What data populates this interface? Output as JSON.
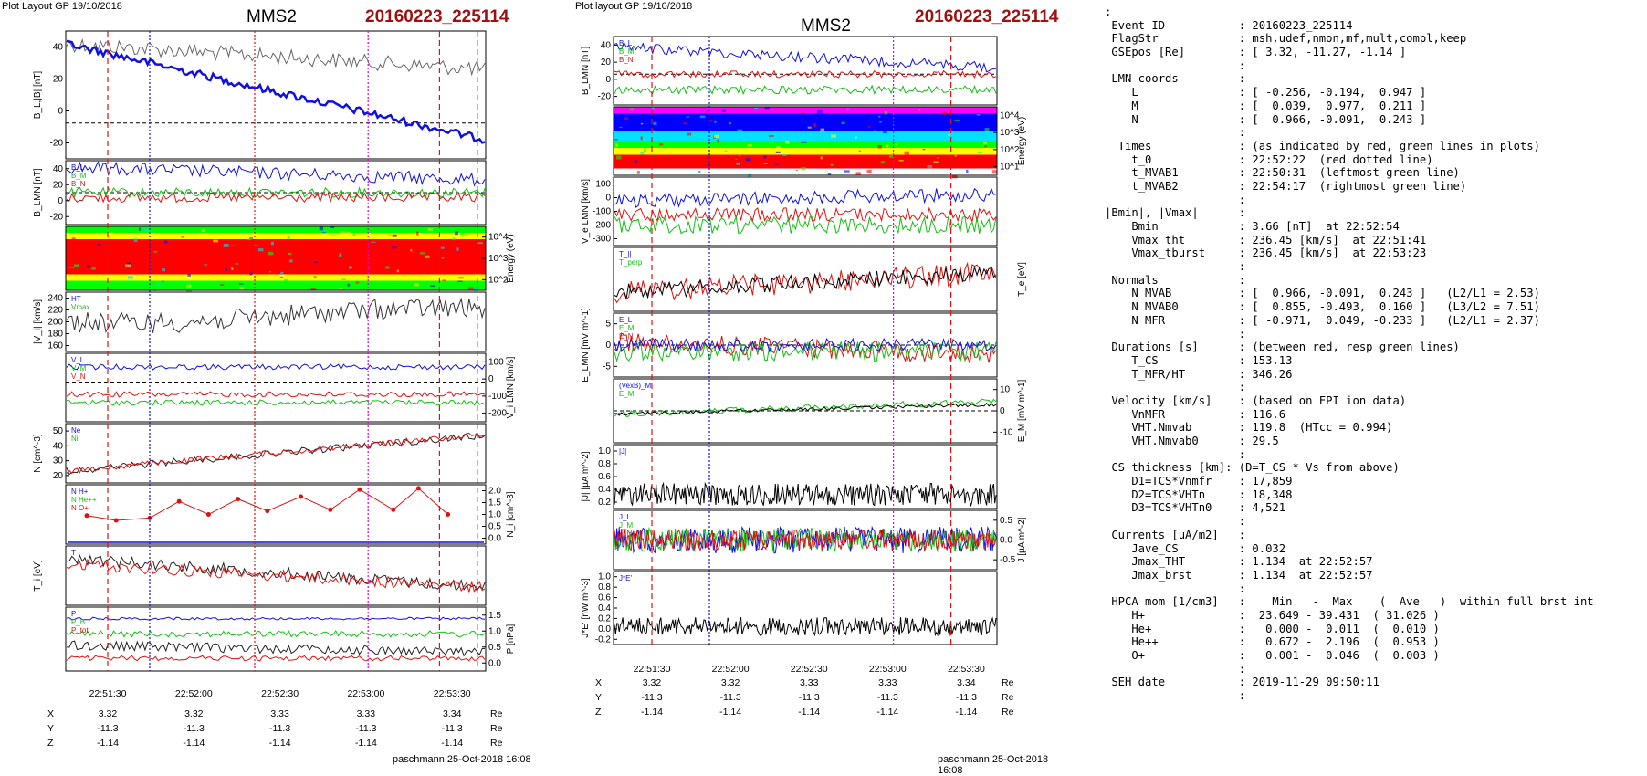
{
  "left": {
    "header": "Plot Layout GP 19/10/2018",
    "title": "MMS2",
    "event": "20160223_225114",
    "footer": "paschmann 25-Oct-2018 16:08",
    "time_ticks": [
      "22:51:30",
      "22:52:00",
      "22:52:30",
      "22:53:00",
      "22:53:30"
    ],
    "pos_rows": [
      {
        "label": "X",
        "values": [
          "3.32",
          "3.32",
          "3.33",
          "3.33",
          "3.34"
        ],
        "unit": "Re"
      },
      {
        "label": "Y",
        "values": [
          "-11.3",
          "-11.3",
          "-11.3",
          "-11.3",
          "-11.3"
        ],
        "unit": "Re"
      },
      {
        "label": "Z",
        "values": [
          "-1.14",
          "-1.14",
          "-1.14",
          "-1.14",
          "-1.14"
        ],
        "unit": "Re"
      }
    ],
    "panels": [
      {
        "ylabel": "B_L,|B| [nT]",
        "ticks": [
          "40",
          "20",
          "0",
          "-20"
        ],
        "side": "left"
      },
      {
        "ylabel": "B_LMN [nT]",
        "ticks": [
          "40",
          "20",
          "0",
          "-20"
        ],
        "side": "left",
        "legend": [
          "B_L",
          "B_M",
          "B_N"
        ]
      },
      {
        "ylabel": "Energy (eV)",
        "ticks": [
          "10^4",
          "10^3",
          "10^2"
        ],
        "side": "right"
      },
      {
        "ylabel": "|V_i| [km/s]",
        "ticks": [
          "240",
          "220",
          "200",
          "180",
          "160"
        ],
        "side": "left",
        "legend": [
          "HT",
          "Vmax"
        ]
      },
      {
        "ylabel": "V_i LMN [km/s]",
        "ticks": [
          "100",
          "0",
          "-100",
          "-200"
        ],
        "side": "right",
        "legend": [
          "V_L",
          "V_M",
          "V_N"
        ]
      },
      {
        "ylabel": "N [cm^-3]",
        "ticks": [
          "50",
          "40",
          "30",
          "20"
        ],
        "side": "left",
        "legend": [
          "Ne",
          "Ni"
        ]
      },
      {
        "ylabel": "N_i [cm^-3]",
        "ticks": [
          "2.0",
          "1.5",
          "1.0",
          "0.5",
          "0.0"
        ],
        "side": "right",
        "legend": [
          "N H+",
          "N He++",
          "N O+"
        ]
      },
      {
        "ylabel": "T_i [eV]",
        "ticks": [],
        "side": "left",
        "legend": [
          "T"
        ]
      },
      {
        "ylabel": "P [nPa]",
        "ticks": [
          "1.5",
          "1.0",
          "0.5",
          "0.0"
        ],
        "side": "right",
        "legend": [
          "P",
          "P_B",
          "P_tot"
        ]
      }
    ]
  },
  "mid": {
    "header": "Plot layout GP 19/10/2018",
    "title": "MMS2",
    "event": "20160223_225114",
    "footer": "paschmann 25-Oct-2018 16:08",
    "time_ticks": [
      "22:51:30",
      "22:52:00",
      "22:52:30",
      "22:53:00",
      "22:53:30"
    ],
    "pos_rows": [
      {
        "label": "X",
        "values": [
          "3.32",
          "3.32",
          "3.33",
          "3.33",
          "3.34"
        ],
        "unit": "Re"
      },
      {
        "label": "Y",
        "values": [
          "-11.3",
          "-11.3",
          "-11.3",
          "-11.3",
          "-11.3"
        ],
        "unit": "Re"
      },
      {
        "label": "Z",
        "values": [
          "-1.14",
          "-1.14",
          "-1.14",
          "-1.14",
          "-1.14"
        ],
        "unit": "Re"
      }
    ],
    "panels": [
      {
        "ylabel": "B_LMN [nT]",
        "ticks": [
          "40",
          "20",
          "0",
          "-20"
        ],
        "side": "left",
        "legend": [
          "B_L",
          "B_M",
          "B_N"
        ]
      },
      {
        "ylabel": "Energy (eV)",
        "ticks": [
          "10^4",
          "10^3",
          "10^2",
          "10^1"
        ],
        "side": "right"
      },
      {
        "ylabel": "V_e LMN [km/s]",
        "ticks": [
          "100",
          "0",
          "-100",
          "-200",
          "-300"
        ],
        "side": "left"
      },
      {
        "ylabel": "T_e [eV]",
        "ticks": [],
        "side": "right",
        "legend": [
          "T_||",
          "T_perp"
        ]
      },
      {
        "ylabel": "E_LMN [mV m^-1]",
        "ticks": [
          "5",
          "0",
          "-5"
        ],
        "side": "left",
        "legend": [
          "E_L",
          "E_M",
          "E_N"
        ]
      },
      {
        "ylabel": "E_M [mV m^-1]",
        "ticks": [
          "10",
          "0",
          "-10"
        ],
        "side": "right",
        "legend": [
          "(VexB)_M",
          "E_M"
        ]
      },
      {
        "ylabel": "|J| [µA m^-2]",
        "ticks": [
          "1.0",
          "0.8",
          "0.6",
          "0.4",
          "0.2"
        ],
        "side": "left",
        "legend": [
          "|J|"
        ]
      },
      {
        "ylabel": "J [µA m^-2]",
        "ticks": [
          "0.5",
          "0.0",
          "-0.5"
        ],
        "side": "right",
        "legend": [
          "J_L",
          "J_M",
          "J_N"
        ]
      },
      {
        "ylabel": "J*E' [nW m^-3]",
        "ticks": [
          "1.0",
          "0.8",
          "0.6",
          "0.4",
          "0.2",
          "0.0",
          "-0.2"
        ],
        "side": "left",
        "legend": [
          "J*E'"
        ]
      }
    ]
  },
  "summary_lines": [
    ":",
    " Event ID           : 20160223_225114",
    " FlagStr            : msh,udef,nmon,mf,mult,compl,keep",
    " GSEpos [Re]        : [ 3.32, -11.27, -1.14 ]",
    "                    :",
    " LMN coords         :",
    "    L               : [ -0.256, -0.194,  0.947 ]",
    "    M               : [  0.039,  0.977,  0.211 ]",
    "    N               : [  0.966, -0.091,  0.243 ]",
    "                    :",
    "  Times             : (as indicated by red, green lines in plots)",
    "    t_0             : 22:52:22  (red dotted line)",
    "    t_MVAB1         : 22:50:31  (leftmost green line)",
    "    t_MVAB2         : 22:54:17  (rightmost green line)",
    "                    :",
    "|Bmin|, |Vmax|      :",
    "    Bmin            : 3.66 [nT]  at 22:52:54",
    "    Vmax_tht        : 236.45 [km/s]  at 22:51:41",
    "    Vmax_tburst     : 236.45 [km/s]  at 22:53:23",
    "                    :",
    " Normals            :",
    "    N MVAB          : [  0.966, -0.091,  0.243 ]   (L2/L1 = 2.53)",
    "    N MVAB0         : [  0.855, -0.493,  0.160 ]   (L3/L2 = 7.51)",
    "    N MFR           : [ -0.971,  0.049, -0.233 ]   (L2/L1 = 2.37)",
    "                    :",
    " Durations [s]      : (between red, resp green lines)",
    "    T_CS            : 153.13",
    "    T_MFR/HT        : 346.26",
    "                    :",
    " Velocity [km/s]    : (based on FPI ion data)",
    "    VnMFR           : 116.6",
    "    VHT.Nmvab       : 119.8  (HTcc = 0.994)",
    "    VHT.Nmvab0      : 29.5",
    "                    :",
    " CS thickness [km]: (D=T_CS * Vs from above)",
    "    D1=TCS*Vnmfr    : 17,859",
    "    D2=TCS*VHTn     : 18,348",
    "    D3=TCS*VHTn0    : 4,521",
    "                    :",
    " Currents [uA/m2]   :",
    "    Jave_CS         : 0.032",
    "    Jmax_THT        : 1.134  at 22:52:57",
    "    Jmax_brst       : 1.134  at 22:52:57",
    "                    :",
    " HPCA mom [1/cm3]   :    Min   -  Max    (  Ave   )  within full brst int",
    "    H+              :  23.649 - 39.431  ( 31.026 )",
    "    He+             :   0.000 -  0.011  (  0.010 )",
    "    He++            :   0.672 -  2.196  (  0.953 )",
    "    O+              :   0.001 -  0.046  (  0.003 )",
    "                    :",
    " SEH date           : 2019-11-29 09:50:11",
    "                    :"
  ],
  "colors": {
    "red": "#e01010",
    "blue": "#1010e0",
    "green": "#10c010",
    "black": "#000000",
    "magenta": "#e000e0",
    "event": "#a01010"
  },
  "chart_data": [
    {
      "type": "line",
      "title": "MMS2",
      "subtitle": "20160223_225114",
      "x": [
        "22:51:30",
        "22:52:00",
        "22:52:30",
        "22:53:00",
        "22:53:30"
      ],
      "series": [
        {
          "name": "B_L",
          "values": [
            35,
            20,
            5,
            -10,
            -20
          ]
        }
      ],
      "ylabel": "B_L,|B| [nT]"
    },
    {
      "type": "line",
      "title": "MMS2",
      "subtitle": "20160223_225114",
      "x": [
        "22:51:30",
        "22:52:00",
        "22:52:30",
        "22:53:00",
        "22:53:30"
      ],
      "series": [
        {
          "name": "B_L",
          "values": [
            35,
            25,
            20,
            10,
            -5
          ]
        },
        {
          "name": "B_M",
          "values": [
            0,
            -2,
            -4,
            -6,
            -8
          ]
        },
        {
          "name": "B_N",
          "values": [
            -10,
            -12,
            -14,
            -15,
            -16
          ]
        }
      ],
      "ylabel": "B_LMN [nT]"
    },
    {
      "type": "scatter",
      "x": [
        "22:51:30",
        "22:52:00",
        "22:52:30",
        "22:53:00",
        "22:53:30"
      ],
      "series": [
        {
          "name": "N He++",
          "values": [
            0.75,
            1.45,
            1.55,
            1.9,
            1.1
          ]
        }
      ],
      "ylabel": "N_i [cm^-3]",
      "ylim": [
        0,
        2.0
      ]
    }
  ]
}
